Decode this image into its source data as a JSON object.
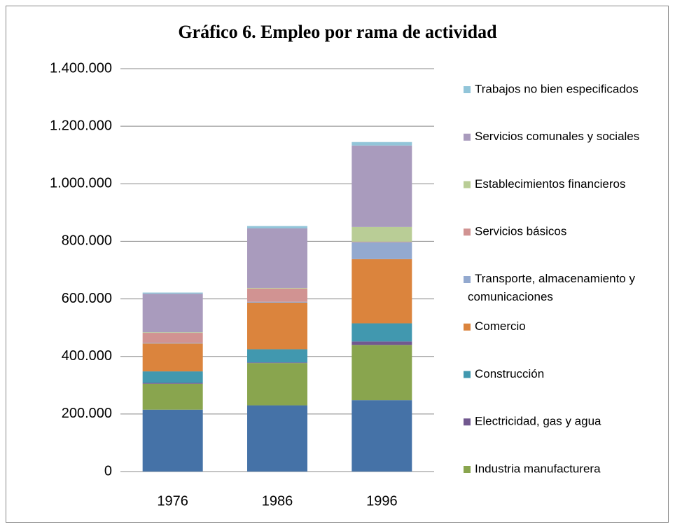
{
  "chart_data": {
    "type": "stacked_bar",
    "title": "Gráfico 6. Empleo por rama de actividad",
    "categories": [
      "1976",
      "1986",
      "1996"
    ],
    "series": [
      {
        "color": "#4572a7",
        "values": [
          215000,
          230000,
          248000
        ]
      },
      {
        "name": "Industria manufacturera",
        "color": "#89a54e",
        "values": [
          90000,
          147000,
          192000
        ]
      },
      {
        "name": "Electricidad, gas y agua",
        "color": "#71588f",
        "values": [
          3000,
          2000,
          12000
        ]
      },
      {
        "name": "Construcción",
        "color": "#4198af",
        "values": [
          40000,
          46000,
          63000
        ]
      },
      {
        "name": "Comercio",
        "color": "#db843d",
        "values": [
          97000,
          162000,
          223000
        ]
      },
      {
        "name": "Transporte, almacenamiento y comunicaciones",
        "color": "#93a9cf",
        "values": [
          2000,
          3000,
          59000
        ]
      },
      {
        "name": "Servicios básicos",
        "color": "#d19392",
        "values": [
          35000,
          46000,
          2000
        ]
      },
      {
        "name": "Establecimientos financieros",
        "color": "#b9cd96",
        "values": [
          2000,
          2000,
          51000
        ]
      },
      {
        "name": "Servicios comunales y sociales",
        "color": "#a99bbd",
        "values": [
          134000,
          207000,
          283000
        ]
      },
      {
        "name": "Trabajos no bien especificados",
        "color": "#92c5d9",
        "values": [
          4000,
          8000,
          12000
        ]
      }
    ],
    "ylim": [
      0,
      1400000
    ],
    "yticks": [
      0,
      {
        "value": 200000,
        "label": "200.000"
      },
      {
        "value": 400000,
        "label": "400.000"
      },
      {
        "value": 600000,
        "label": "600.000"
      },
      {
        "value": 800000,
        "label": "800.000"
      },
      {
        "value": 1000000,
        "label": "1.000.000"
      },
      {
        "value": 1200000,
        "label": "1.200.000"
      },
      {
        "value": 1400000,
        "label": "1.400.000"
      }
    ],
    "grid": true,
    "legend": "right"
  }
}
